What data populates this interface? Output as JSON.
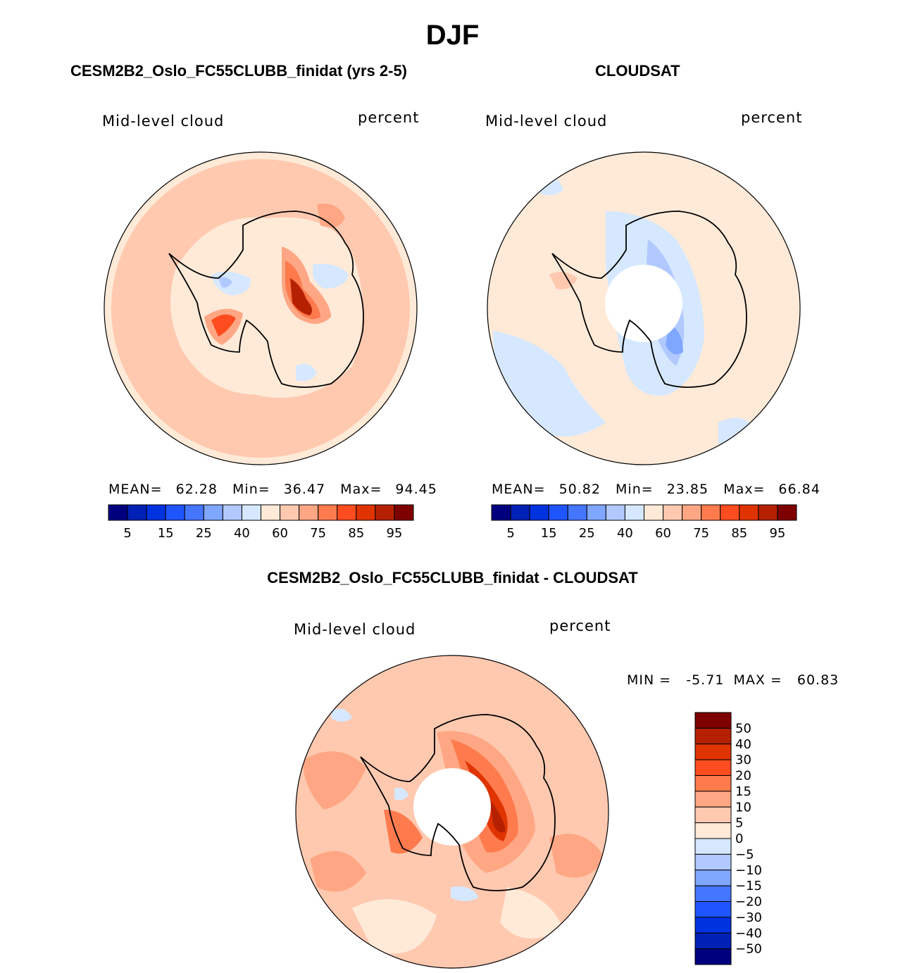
{
  "main_title": "DJF",
  "palette_abs": [
    "#00007f",
    "#0021b5",
    "#0033e0",
    "#1f55ff",
    "#4576ff",
    "#7fa7ff",
    "#b1c9ff",
    "#d5e8ff",
    "#ffead8",
    "#ffc9b0",
    "#ffa784",
    "#ff7b4d",
    "#ff4d1f",
    "#e03400",
    "#b52100",
    "#7f0000"
  ],
  "chart_data": [
    {
      "type": "heatmap",
      "title": "CESM2B2_Oslo_FC55CLUBB_finidat (yrs 2-5)",
      "variable": "Mid-level cloud",
      "units": "percent",
      "projection": "south polar stereographic",
      "stats": {
        "mean_label": "MEAN=",
        "mean": "62.28",
        "min_label": "Min=",
        "min": "36.47",
        "max_label": "Max=",
        "max": "94.45"
      },
      "colorbar": {
        "levels": [
          5,
          10,
          15,
          20,
          25,
          30,
          40,
          50,
          60,
          70,
          75,
          80,
          85,
          90,
          95
        ],
        "tick_labels": [
          "5",
          "15",
          "25",
          "40",
          "60",
          "75",
          "85",
          "95"
        ]
      },
      "features": [
        {
          "region": "open ocean ring",
          "value_range": "60-70"
        },
        {
          "region": "East Antarctic interior",
          "value_range": "85-95"
        },
        {
          "region": "Ross/Weddell interior",
          "value_range": "50-60"
        }
      ]
    },
    {
      "type": "heatmap",
      "title": "CLOUDSAT",
      "variable": "Mid-level cloud",
      "units": "percent",
      "projection": "south polar stereographic",
      "stats": {
        "mean_label": "MEAN=",
        "mean": "50.82",
        "min_label": "Min=",
        "min": "23.85",
        "max_label": "Max=",
        "max": "66.84"
      },
      "colorbar": {
        "levels": [
          5,
          10,
          15,
          20,
          25,
          30,
          40,
          50,
          60,
          70,
          75,
          80,
          85,
          90,
          95
        ],
        "tick_labels": [
          "5",
          "15",
          "25",
          "40",
          "60",
          "75",
          "85",
          "95"
        ]
      },
      "features": [
        {
          "region": "pole hole",
          "value_range": "missing"
        },
        {
          "region": "East Antarctic interior",
          "value_range": "25-40"
        }
      ]
    },
    {
      "type": "heatmap",
      "title": "CESM2B2_Oslo_FC55CLUBB_finidat - CLOUDSAT",
      "variable": "Mid-level cloud",
      "units": "percent",
      "projection": "south polar stereographic",
      "stats": {
        "min_label": "MIN =",
        "min": "-5.71",
        "max_label": "MAX =",
        "max": "60.83"
      },
      "colorbar": {
        "levels": [
          -50,
          -40,
          -30,
          -20,
          -15,
          -10,
          -5,
          0,
          5,
          10,
          15,
          20,
          30,
          40,
          50
        ],
        "tick_labels": [
          "50",
          "40",
          "30",
          "20",
          "15",
          "10",
          "5",
          "0",
          "−5",
          "−10",
          "−15",
          "−20",
          "−30",
          "−40",
          "−50"
        ],
        "orientation": "vertical"
      },
      "features": [
        {
          "region": "pole hole",
          "value_range": "missing"
        },
        {
          "region": "East Antarctic interior",
          "value_range": "40-60"
        }
      ]
    }
  ]
}
